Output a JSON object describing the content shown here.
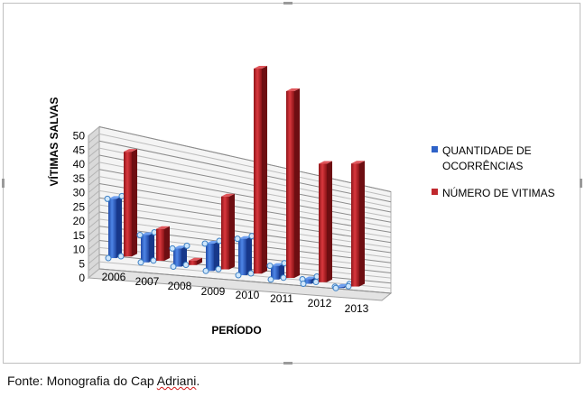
{
  "caption": {
    "prefix": "Fonte:  Monografia do Cap ",
    "name": "Adriani",
    "suffix": "."
  },
  "chart_data": {
    "type": "bar",
    "xlabel": "PERÍODO",
    "ylabel": "VÍTIMAS SALVAS",
    "ylim": [
      0,
      50
    ],
    "yticks": [
      "0",
      "5",
      "10",
      "15",
      "20",
      "25",
      "30",
      "35",
      "40",
      "45",
      "50"
    ],
    "categories": [
      "2006",
      "2007",
      "2008",
      "2009",
      "2010",
      "2011",
      "2012",
      "2013"
    ],
    "series": [
      {
        "name": "QUANTIDADE DE OCORRÊNCIAS",
        "color": "#2e62c8",
        "values": [
          13,
          6,
          4,
          6,
          8,
          3,
          1,
          0
        ]
      },
      {
        "name": "NÚMERO DE VITIMAS",
        "color": "#c0282d",
        "values": [
          23,
          7,
          1,
          16,
          45,
          41,
          26,
          27
        ]
      }
    ],
    "legend_position": "right",
    "grid": true,
    "style": "3D clustered bar"
  }
}
